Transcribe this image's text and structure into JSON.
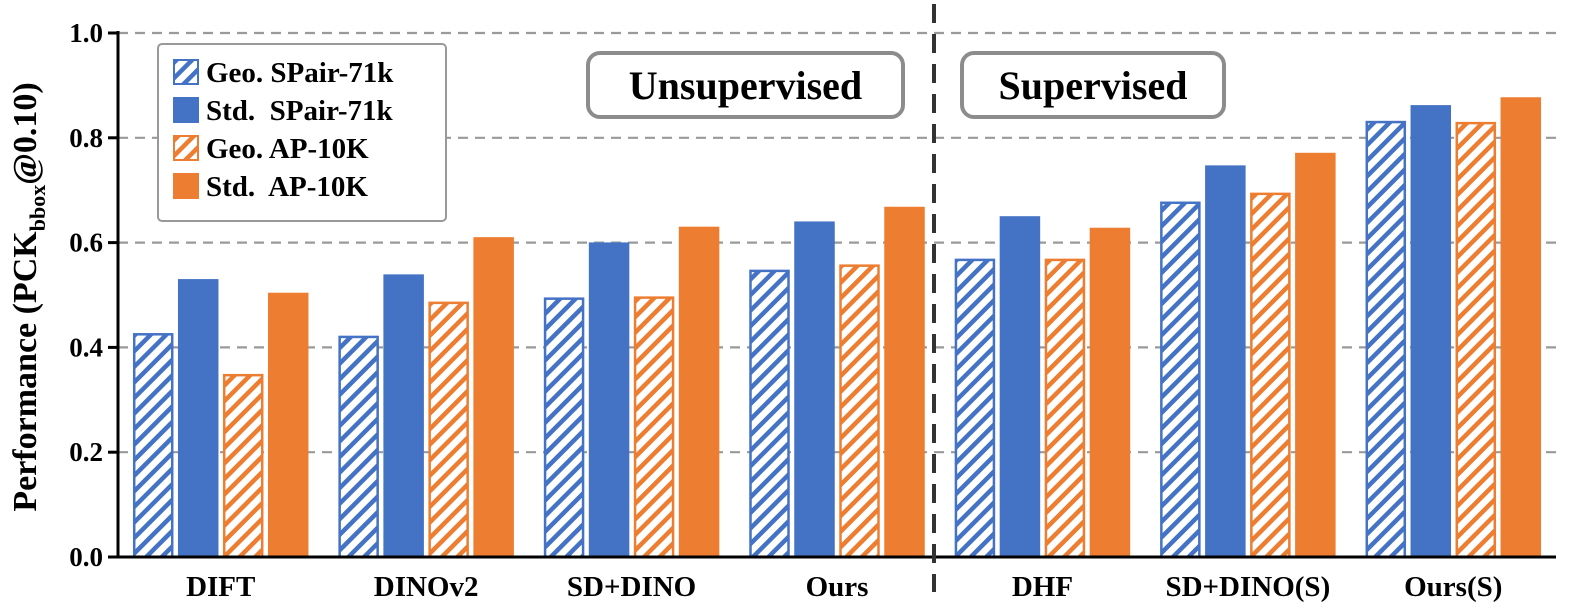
{
  "chart_data": {
    "type": "bar",
    "categories": [
      "DIFT",
      "DINOv2",
      "SD+DINO",
      "Ours",
      "DHF",
      "SD+DINO(S)",
      "Ours(S)"
    ],
    "series": [
      {
        "name": "Geo. SPair-71k",
        "pattern": "hatched",
        "color": "#4472C4",
        "values": [
          0.425,
          0.42,
          0.493,
          0.546,
          0.567,
          0.676,
          0.83
        ]
      },
      {
        "name": "Std.  SPair-71k",
        "pattern": "solid",
        "color": "#4472C4",
        "values": [
          0.528,
          0.537,
          0.598,
          0.638,
          0.648,
          0.745,
          0.86
        ]
      },
      {
        "name": "Geo. AP-10K",
        "pattern": "hatched",
        "color": "#ED7D31",
        "values": [
          0.347,
          0.485,
          0.495,
          0.556,
          0.567,
          0.693,
          0.828
        ]
      },
      {
        "name": "Std.  AP-10K",
        "pattern": "solid",
        "color": "#ED7D31",
        "values": [
          0.502,
          0.608,
          0.628,
          0.666,
          0.626,
          0.769,
          0.875
        ]
      }
    ],
    "ylabel": {
      "main": "Performance (PCK",
      "sub": "bbox",
      "tail": "@0.10)"
    },
    "ylim": [
      0,
      1.0
    ],
    "yticks": [
      "0.0",
      "0.2",
      "0.4",
      "0.6",
      "0.8",
      "1.0"
    ],
    "grid": true,
    "legend": "top-left",
    "groups": [
      {
        "label": "Unsupervised",
        "categories": [
          "DIFT",
          "DINOv2",
          "SD+DINO",
          "Ours"
        ]
      },
      {
        "label": "Supervised",
        "categories": [
          "DHF",
          "SD+DINO(S)",
          "Ours(S)"
        ]
      }
    ]
  }
}
